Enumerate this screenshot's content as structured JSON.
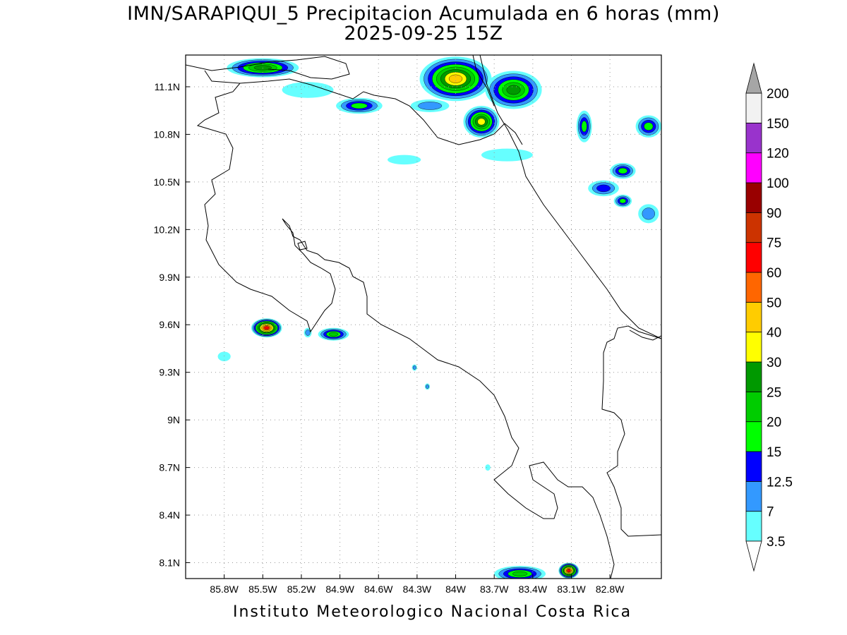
{
  "title": {
    "line1": "IMN/SARAPIQUI_5 Precipitacion Acumulada en 6 horas (mm)",
    "line2": "2025-09-25 15Z"
  },
  "footer": "Instituto Meteorologico Nacional Costa Rica",
  "map": {
    "lon_range": [
      -86.1,
      -82.4
    ],
    "lat_range": [
      8.0,
      11.3
    ],
    "lon_ticks": [
      {
        "value": -85.8,
        "label": "85.8W"
      },
      {
        "value": -85.5,
        "label": "85.5W"
      },
      {
        "value": -85.2,
        "label": "85.2W"
      },
      {
        "value": -84.9,
        "label": "84.9W"
      },
      {
        "value": -84.6,
        "label": "84.6W"
      },
      {
        "value": -84.3,
        "label": "84.3W"
      },
      {
        "value": -84.0,
        "label": "84W"
      },
      {
        "value": -83.7,
        "label": "83.7W"
      },
      {
        "value": -83.4,
        "label": "83.4W"
      },
      {
        "value": -83.1,
        "label": "83.1W"
      },
      {
        "value": -82.8,
        "label": "82.8W"
      }
    ],
    "lat_ticks": [
      {
        "value": 11.1,
        "label": "11.1N"
      },
      {
        "value": 10.8,
        "label": "10.8N"
      },
      {
        "value": 10.5,
        "label": "10.5N"
      },
      {
        "value": 10.2,
        "label": "10.2N"
      },
      {
        "value": 9.9,
        "label": "9.9N"
      },
      {
        "value": 9.6,
        "label": "9.6N"
      },
      {
        "value": 9.3,
        "label": "9.3N"
      },
      {
        "value": 9.0,
        "label": "9N"
      },
      {
        "value": 8.7,
        "label": "8.7N"
      },
      {
        "value": 8.4,
        "label": "8.4N"
      },
      {
        "value": 8.1,
        "label": "8.1N"
      }
    ],
    "grid": true
  },
  "colorbar": {
    "levels": [
      {
        "label": "3.5",
        "color": "#ffffff"
      },
      {
        "label": "7",
        "color": "#66ffff"
      },
      {
        "label": "12.5",
        "color": "#3399ff"
      },
      {
        "label": "15",
        "color": "#0000ff"
      },
      {
        "label": "20",
        "color": "#00ff00"
      },
      {
        "label": "25",
        "color": "#00cc00"
      },
      {
        "label": "30",
        "color": "#009900"
      },
      {
        "label": "40",
        "color": "#ffff00"
      },
      {
        "label": "50",
        "color": "#ffcc00"
      },
      {
        "label": "60",
        "color": "#ff6600"
      },
      {
        "label": "75",
        "color": "#ff0000"
      },
      {
        "label": "90",
        "color": "#cc3300"
      },
      {
        "label": "100",
        "color": "#990000"
      },
      {
        "label": "120",
        "color": "#ff00ff"
      },
      {
        "label": "150",
        "color": "#9933cc"
      },
      {
        "label": "200",
        "color": "#f2f2f2"
      }
    ],
    "over_color": "#a6a6a6",
    "under_color": "#ffffff"
  },
  "precip_cells": [
    {
      "lon": -85.5,
      "lat": 11.22,
      "rx": 0.28,
      "ry": 0.06,
      "level": 6
    },
    {
      "lon": -85.15,
      "lat": 11.08,
      "rx": 0.2,
      "ry": 0.05,
      "level": 1
    },
    {
      "lon": -84.75,
      "lat": 10.98,
      "rx": 0.18,
      "ry": 0.05,
      "level": 4
    },
    {
      "lon": -84.0,
      "lat": 11.15,
      "rx": 0.28,
      "ry": 0.14,
      "level": 8
    },
    {
      "lon": -83.55,
      "lat": 11.08,
      "rx": 0.22,
      "ry": 0.12,
      "level": 6
    },
    {
      "lon": -83.8,
      "lat": 10.88,
      "rx": 0.14,
      "ry": 0.1,
      "level": 7
    },
    {
      "lon": -84.2,
      "lat": 10.98,
      "rx": 0.15,
      "ry": 0.04,
      "level": 2
    },
    {
      "lon": -83.0,
      "lat": 10.85,
      "rx": 0.06,
      "ry": 0.1,
      "level": 4
    },
    {
      "lon": -82.5,
      "lat": 10.85,
      "rx": 0.1,
      "ry": 0.07,
      "level": 4
    },
    {
      "lon": -82.7,
      "lat": 10.57,
      "rx": 0.1,
      "ry": 0.05,
      "level": 4
    },
    {
      "lon": -82.85,
      "lat": 10.46,
      "rx": 0.12,
      "ry": 0.05,
      "level": 3
    },
    {
      "lon": -82.7,
      "lat": 10.38,
      "rx": 0.07,
      "ry": 0.04,
      "level": 4
    },
    {
      "lon": -82.5,
      "lat": 10.3,
      "rx": 0.08,
      "ry": 0.06,
      "level": 2
    },
    {
      "lon": -84.4,
      "lat": 10.64,
      "rx": 0.13,
      "ry": 0.03,
      "level": 1
    },
    {
      "lon": -83.6,
      "lat": 10.67,
      "rx": 0.2,
      "ry": 0.04,
      "level": 1
    },
    {
      "lon": -85.47,
      "lat": 9.58,
      "rx": 0.12,
      "ry": 0.06,
      "level": 10
    },
    {
      "lon": -84.95,
      "lat": 9.54,
      "rx": 0.12,
      "ry": 0.04,
      "level": 5
    },
    {
      "lon": -85.15,
      "lat": 9.55,
      "rx": 0.03,
      "ry": 0.03,
      "level": 2
    },
    {
      "lon": -85.8,
      "lat": 9.4,
      "rx": 0.05,
      "ry": 0.03,
      "level": 1
    },
    {
      "lon": -84.32,
      "lat": 9.33,
      "rx": 0.02,
      "ry": 0.02,
      "level": 2
    },
    {
      "lon": -84.22,
      "lat": 9.21,
      "rx": 0.02,
      "ry": 0.02,
      "level": 2
    },
    {
      "lon": -83.5,
      "lat": 8.03,
      "rx": 0.2,
      "ry": 0.05,
      "level": 5
    },
    {
      "lon": -83.12,
      "lat": 8.05,
      "rx": 0.08,
      "ry": 0.05,
      "level": 10
    },
    {
      "lon": -83.75,
      "lat": 8.7,
      "rx": 0.02,
      "ry": 0.02,
      "level": 1
    }
  ]
}
